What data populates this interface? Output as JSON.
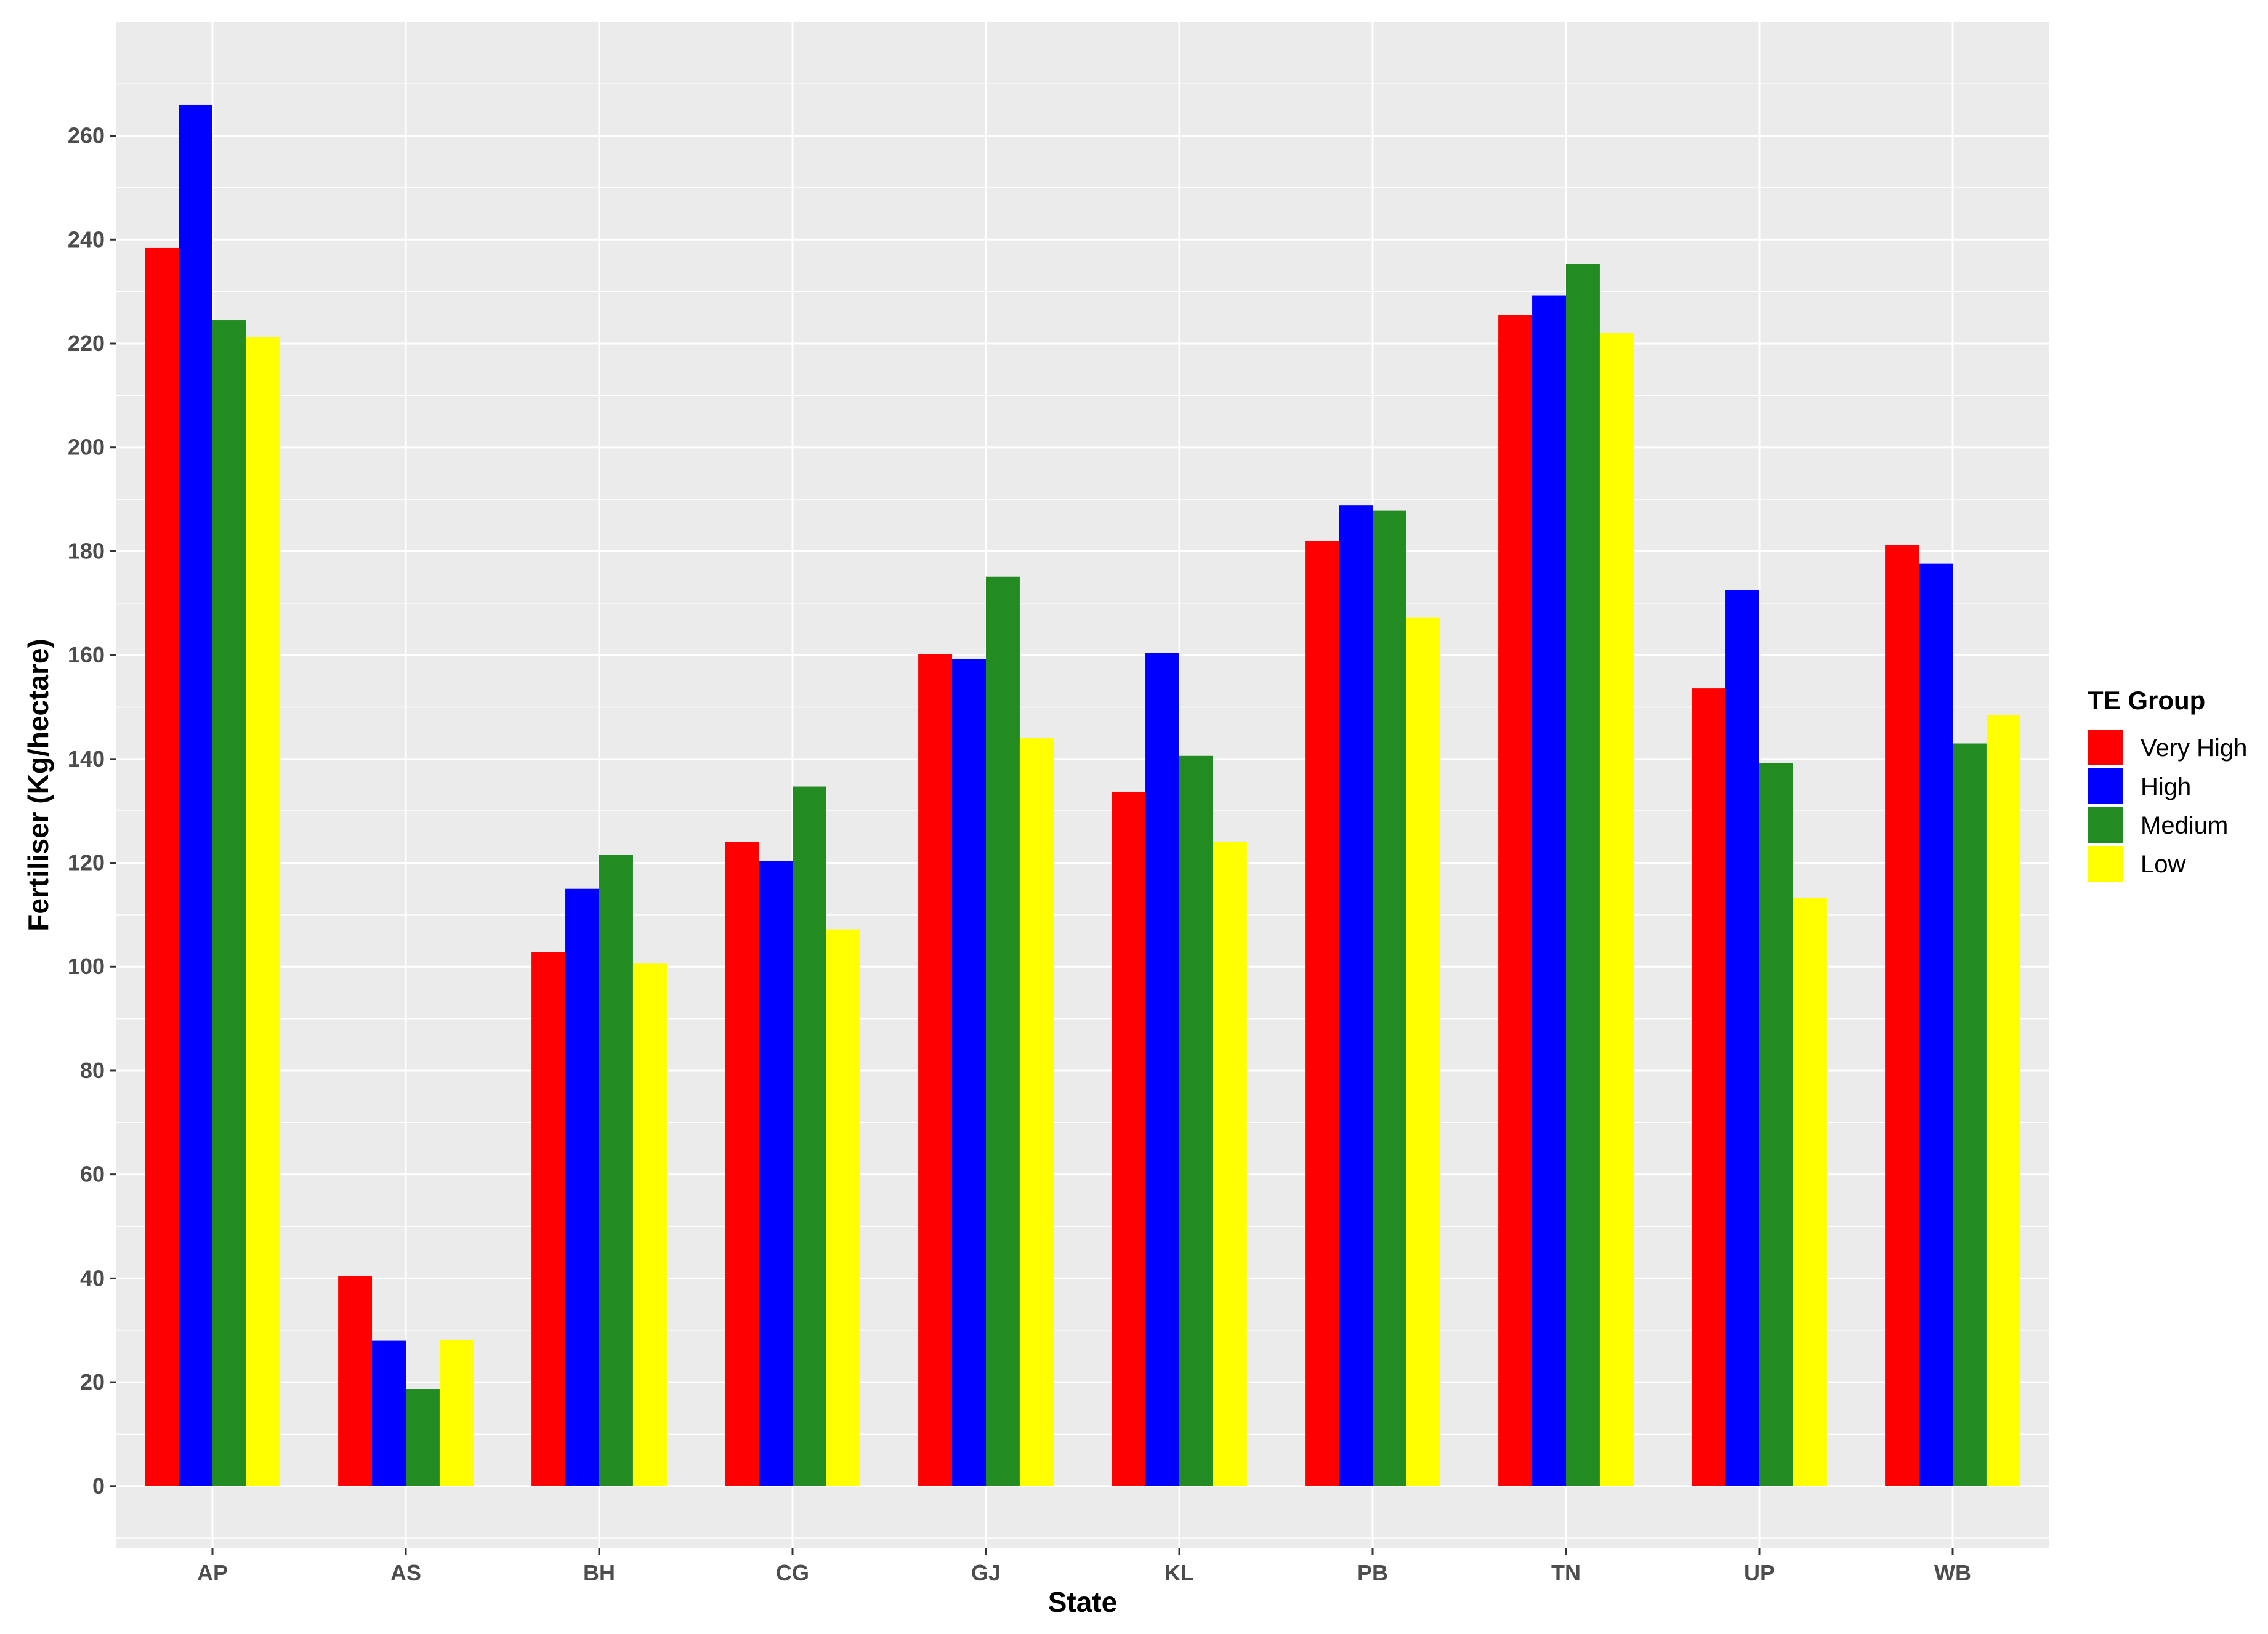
{
  "chart_data": {
    "type": "bar",
    "title": "",
    "xlabel": "State",
    "ylabel": "Fertiliser (Kg/hectare)",
    "categories": [
      "AP",
      "AS",
      "BH",
      "CG",
      "GJ",
      "KL",
      "PB",
      "TN",
      "UP",
      "WB"
    ],
    "ylim": [
      -12,
      282
    ],
    "yticks": [
      "0",
      "20",
      "40",
      "60",
      "80",
      "100",
      "120",
      "140",
      "160",
      "180",
      "200",
      "220",
      "240",
      "260"
    ],
    "grid": true,
    "legend_position": "right",
    "legend_title": "TE Group",
    "series": [
      {
        "name": "Very High",
        "color": "#ff0000",
        "values": [
          238.5,
          40.5,
          102.8,
          124.0,
          160.2,
          133.7,
          182.0,
          225.5,
          153.6,
          181.2
        ]
      },
      {
        "name": "High",
        "color": "#0000ff",
        "values": [
          266.0,
          28.0,
          115.0,
          120.3,
          159.3,
          160.4,
          188.8,
          229.3,
          172.5,
          177.6
        ]
      },
      {
        "name": "Medium",
        "color": "#228b22",
        "values": [
          224.5,
          18.7,
          121.6,
          134.7,
          175.1,
          140.6,
          187.8,
          235.3,
          139.2,
          143.0
        ]
      },
      {
        "name": "Low",
        "color": "#ffff00",
        "values": [
          221.3,
          28.2,
          100.7,
          107.2,
          144.0,
          124.0,
          167.3,
          222.0,
          113.3,
          148.5
        ]
      }
    ]
  }
}
